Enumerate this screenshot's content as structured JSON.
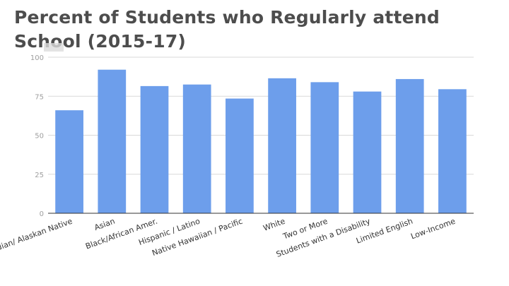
{
  "chart_data": {
    "type": "bar",
    "title": "Percent of Students who Regularly attend School (2015-17)",
    "categories": [
      "American Indian/ Alaskan Native",
      "Asian",
      "Black/African Amer.",
      "Hispanic / Latino",
      "Native Hawaiian / Pacific",
      "White",
      "Two or More",
      "Students with a Disability",
      "Limited English",
      "Low-Income"
    ],
    "values": [
      66,
      92,
      81.5,
      82.5,
      73.5,
      86.5,
      84,
      78,
      86,
      79.5
    ],
    "ylim": [
      0,
      100
    ],
    "yticks": [
      "0",
      "25",
      "50",
      "75",
      "100"
    ],
    "grid": true,
    "bar_color": "#6d9eeb",
    "grid_color": "#d9d9d9",
    "axis_color": "#333333"
  }
}
